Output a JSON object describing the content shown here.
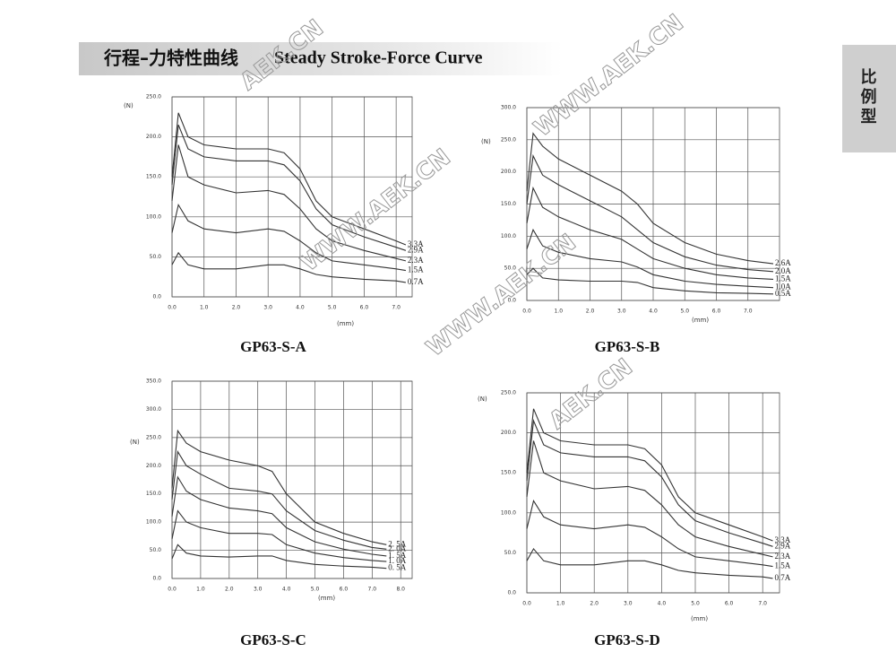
{
  "header": {
    "title_cn": "行程–力特性曲线",
    "title_en": "Steady Stroke-Force Curve"
  },
  "side_tab": "比例型",
  "watermarks": [
    "AEK.CN",
    "WWW.AEK.CN",
    "WWW.AEK.CN",
    "WWW.AEK.CN",
    "AEK.CN"
  ],
  "chart_data": [
    {
      "type": "line",
      "title": "GP63-S-A",
      "y_label": "(N)",
      "x_label": "(mm)",
      "x": [
        0,
        0.2,
        0.5,
        1,
        2,
        3,
        3.5,
        4,
        4.5,
        5,
        6,
        7,
        7.3
      ],
      "xlim": [
        0,
        7.5
      ],
      "ylim": [
        0,
        250
      ],
      "xticks": [
        {
          "value": 0,
          "label": "0.0"
        },
        {
          "value": 1,
          "label": "1.0"
        },
        {
          "value": 2,
          "label": "2.0"
        },
        {
          "value": 3,
          "label": "3.0"
        },
        {
          "value": 4,
          "label": "4.0"
        },
        {
          "value": 5,
          "label": "5.0"
        },
        {
          "value": 6,
          "label": "6.0"
        },
        {
          "value": 7,
          "label": "7.0"
        }
      ],
      "yticks": [
        {
          "value": 0,
          "label": "0.0"
        },
        {
          "value": 50,
          "label": "50.0"
        },
        {
          "value": 100,
          "label": "100.0"
        },
        {
          "value": 150,
          "label": "150.0"
        },
        {
          "value": 200,
          "label": "200.0"
        },
        {
          "value": 250,
          "label": "250.0"
        }
      ],
      "grid": true,
      "series": [
        {
          "name": "3.3A",
          "color": "#333333",
          "values": [
            150,
            230,
            200,
            190,
            185,
            185,
            180,
            160,
            120,
            100,
            85,
            70,
            65
          ]
        },
        {
          "name": "2.9A",
          "color": "#333333",
          "values": [
            140,
            215,
            185,
            175,
            170,
            170,
            165,
            145,
            110,
            90,
            75,
            62,
            58
          ]
        },
        {
          "name": "2.3A",
          "color": "#333333",
          "values": [
            120,
            190,
            150,
            140,
            130,
            133,
            128,
            110,
            85,
            70,
            58,
            48,
            45
          ]
        },
        {
          "name": "1.5A",
          "color": "#333333",
          "values": [
            80,
            115,
            95,
            85,
            80,
            85,
            82,
            70,
            55,
            45,
            40,
            35,
            33
          ]
        },
        {
          "name": "0.7A",
          "color": "#333333",
          "values": [
            40,
            55,
            40,
            35,
            35,
            40,
            40,
            35,
            28,
            25,
            22,
            20,
            18
          ]
        }
      ]
    },
    {
      "type": "line",
      "title": "GP63-S-B",
      "y_label": "(N)",
      "x_label": "(mm)",
      "x": [
        0,
        0.2,
        0.5,
        1,
        2,
        3,
        3.5,
        4,
        5,
        6,
        7,
        7.8
      ],
      "xlim": [
        0,
        8
      ],
      "ylim": [
        0,
        300
      ],
      "xticks": [
        {
          "value": 0,
          "label": "0.0"
        },
        {
          "value": 1,
          "label": "1.0"
        },
        {
          "value": 2,
          "label": "2.0"
        },
        {
          "value": 3,
          "label": "3.0"
        },
        {
          "value": 4,
          "label": "4.0"
        },
        {
          "value": 5,
          "label": "5.0"
        },
        {
          "value": 6,
          "label": "6.0"
        },
        {
          "value": 7,
          "label": "7.0"
        }
      ],
      "yticks": [
        {
          "value": 0,
          "label": "0.0"
        },
        {
          "value": 50,
          "label": "50.0"
        },
        {
          "value": 100,
          "label": "100.0"
        },
        {
          "value": 150,
          "label": "150.0"
        },
        {
          "value": 200,
          "label": "200.0"
        },
        {
          "value": 250,
          "label": "250.0"
        },
        {
          "value": 300,
          "label": "300.0"
        }
      ],
      "grid": true,
      "series": [
        {
          "name": "2.6A",
          "color": "#333333",
          "values": [
            170,
            260,
            240,
            220,
            195,
            170,
            150,
            120,
            90,
            72,
            62,
            57
          ]
        },
        {
          "name": "2.0A",
          "color": "#333333",
          "values": [
            150,
            225,
            195,
            180,
            155,
            130,
            110,
            90,
            68,
            55,
            48,
            45
          ]
        },
        {
          "name": "1.5A",
          "color": "#333333",
          "values": [
            120,
            175,
            145,
            130,
            110,
            95,
            80,
            65,
            50,
            40,
            35,
            33
          ]
        },
        {
          "name": "1.0A",
          "color": "#333333",
          "values": [
            80,
            110,
            85,
            75,
            65,
            60,
            52,
            40,
            30,
            25,
            22,
            20
          ]
        },
        {
          "name": "0.5A",
          "color": "#333333",
          "values": [
            40,
            50,
            35,
            32,
            30,
            30,
            28,
            20,
            15,
            12,
            11,
            10
          ]
        }
      ]
    },
    {
      "type": "line",
      "title": "GP63-S-C",
      "y_label": "(N)",
      "x_label": "(mm)",
      "x": [
        0,
        0.2,
        0.5,
        1,
        2,
        3,
        3.5,
        4,
        5,
        6,
        7,
        7.5
      ],
      "xlim": [
        0,
        8.4
      ],
      "ylim": [
        0,
        350
      ],
      "xticks": [
        {
          "value": 0,
          "label": "0.0"
        },
        {
          "value": 1,
          "label": "1.0"
        },
        {
          "value": 2,
          "label": "2.0"
        },
        {
          "value": 3,
          "label": "3.0"
        },
        {
          "value": 4,
          "label": "4.0"
        },
        {
          "value": 5,
          "label": "5.0"
        },
        {
          "value": 6,
          "label": "6.0"
        },
        {
          "value": 7,
          "label": "7.0"
        },
        {
          "value": 8,
          "label": "8.0"
        }
      ],
      "yticks": [
        {
          "value": 0,
          "label": "0.0"
        },
        {
          "value": 50,
          "label": "50.0"
        },
        {
          "value": 100,
          "label": "100.0"
        },
        {
          "value": 150,
          "label": "150.0"
        },
        {
          "value": 200,
          "label": "200.0"
        },
        {
          "value": 250,
          "label": "250.0"
        },
        {
          "value": 300,
          "label": "300.0"
        },
        {
          "value": 350,
          "label": "350.0"
        }
      ],
      "grid": true,
      "series": [
        {
          "name": "2. 5A",
          "color": "#333333",
          "values": [
            160,
            262,
            240,
            225,
            210,
            200,
            190,
            150,
            100,
            80,
            65,
            60
          ]
        },
        {
          "name": "2. 0A",
          "color": "#333333",
          "values": [
            140,
            225,
            200,
            185,
            160,
            155,
            150,
            120,
            85,
            68,
            55,
            52
          ]
        },
        {
          "name": "1. 5A",
          "color": "#333333",
          "values": [
            110,
            180,
            155,
            140,
            125,
            120,
            115,
            90,
            65,
            52,
            43,
            40
          ]
        },
        {
          "name": "1. 0A",
          "color": "#333333",
          "values": [
            70,
            120,
            100,
            90,
            80,
            80,
            78,
            60,
            45,
            37,
            32,
            30
          ]
        },
        {
          "name": "0. 5A",
          "color": "#333333",
          "values": [
            35,
            60,
            45,
            40,
            38,
            40,
            40,
            32,
            25,
            22,
            20,
            18
          ]
        }
      ]
    },
    {
      "type": "line",
      "title": "GP63-S-D",
      "y_label": "(N)",
      "x_label": "(mm)",
      "x": [
        0,
        0.2,
        0.5,
        1,
        2,
        3,
        3.5,
        4,
        4.5,
        5,
        6,
        7,
        7.3
      ],
      "xlim": [
        0,
        7.5
      ],
      "ylim": [
        0,
        250
      ],
      "xticks": [
        {
          "value": 0,
          "label": "0.0"
        },
        {
          "value": 1,
          "label": "1.0"
        },
        {
          "value": 2,
          "label": "2.0"
        },
        {
          "value": 3,
          "label": "3.0"
        },
        {
          "value": 4,
          "label": "4.0"
        },
        {
          "value": 5,
          "label": "5.0"
        },
        {
          "value": 6,
          "label": "6.0"
        },
        {
          "value": 7,
          "label": "7.0"
        }
      ],
      "yticks": [
        {
          "value": 0,
          "label": "0.0"
        },
        {
          "value": 50,
          "label": "50.0"
        },
        {
          "value": 100,
          "label": "100.0"
        },
        {
          "value": 150,
          "label": "150.0"
        },
        {
          "value": 200,
          "label": "200.0"
        },
        {
          "value": 250,
          "label": "250.0"
        }
      ],
      "grid": true,
      "series": [
        {
          "name": "3.3A",
          "color": "#333333",
          "values": [
            150,
            230,
            200,
            190,
            185,
            185,
            180,
            160,
            120,
            100,
            85,
            70,
            65
          ]
        },
        {
          "name": "2.9A",
          "color": "#333333",
          "values": [
            140,
            215,
            185,
            175,
            170,
            170,
            165,
            145,
            110,
            90,
            75,
            62,
            58
          ]
        },
        {
          "name": "2.3A",
          "color": "#333333",
          "values": [
            120,
            190,
            150,
            140,
            130,
            133,
            128,
            110,
            85,
            70,
            58,
            48,
            45
          ]
        },
        {
          "name": "1.5A",
          "color": "#333333",
          "values": [
            80,
            115,
            95,
            85,
            80,
            85,
            82,
            70,
            55,
            45,
            40,
            35,
            33
          ]
        },
        {
          "name": "0.7A",
          "color": "#333333",
          "values": [
            40,
            55,
            40,
            35,
            35,
            40,
            40,
            35,
            28,
            25,
            22,
            20,
            18
          ]
        }
      ]
    }
  ]
}
